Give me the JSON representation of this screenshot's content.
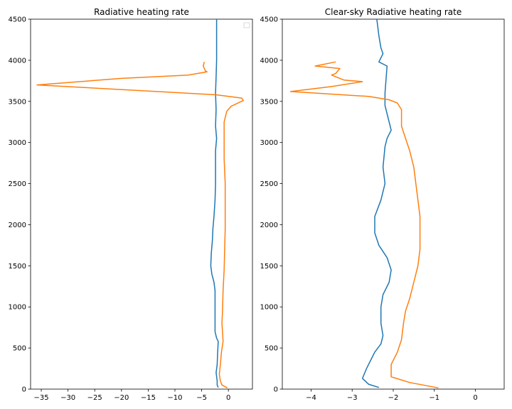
{
  "colors": {
    "series1": "#1f77b4",
    "series2": "#ff7f0e",
    "axes": "#000000",
    "background": "#ffffff"
  },
  "chart_data": [
    {
      "type": "line",
      "title": "Radiative heating rate",
      "xlabel": "",
      "ylabel": "",
      "xlim": [
        -37,
        4.5
      ],
      "ylim": [
        0,
        4500
      ],
      "xticks": [
        -35,
        -30,
        -25,
        -20,
        -15,
        -10,
        -5,
        0
      ],
      "xtick_labels": [
        "−35",
        "−30",
        "−25",
        "−20",
        "−15",
        "−10",
        "−5",
        "0"
      ],
      "yticks": [
        0,
        500,
        1000,
        1500,
        2000,
        2500,
        3000,
        3500,
        4000,
        4500
      ],
      "ytick_labels": [
        "0",
        "500",
        "1000",
        "1500",
        "2000",
        "2500",
        "3000",
        "3500",
        "4000",
        "4500"
      ],
      "grid": false,
      "legend": {
        "placement": "top-right",
        "entries": []
      },
      "series": [
        {
          "color": "#1f77b4",
          "points": [
            [
              -2.2,
              4500
            ],
            [
              -2.2,
              4250
            ],
            [
              -2.2,
              4000
            ],
            [
              -2.3,
              3800
            ],
            [
              -2.4,
              3600
            ],
            [
              -2.3,
              3400
            ],
            [
              -2.4,
              3200
            ],
            [
              -2.2,
              3050
            ],
            [
              -2.4,
              2900
            ],
            [
              -2.4,
              2700
            ],
            [
              -2.4,
              2500
            ],
            [
              -2.5,
              2300
            ],
            [
              -2.7,
              2100
            ],
            [
              -2.9,
              1950
            ],
            [
              -3.0,
              1800
            ],
            [
              -3.2,
              1650
            ],
            [
              -3.3,
              1500
            ],
            [
              -3.1,
              1400
            ],
            [
              -2.7,
              1300
            ],
            [
              -2.5,
              1200
            ],
            [
              -2.5,
              1000
            ],
            [
              -2.5,
              800
            ],
            [
              -2.5,
              700
            ],
            [
              -2.2,
              620
            ],
            [
              -1.9,
              580
            ],
            [
              -2.0,
              450
            ],
            [
              -2.1,
              300
            ],
            [
              -2.3,
              200
            ],
            [
              -2.1,
              100
            ],
            [
              -2.1,
              50
            ],
            [
              -1.9,
              20
            ]
          ]
        },
        {
          "color": "#ff7f0e",
          "points": [
            [
              -4.5,
              3980
            ],
            [
              -4.7,
              3930
            ],
            [
              -4.3,
              3870
            ],
            [
              -4.0,
              3860
            ],
            [
              -7.5,
              3820
            ],
            [
              -20.0,
              3780
            ],
            [
              -35.8,
              3700
            ],
            [
              -2.3,
              3580
            ],
            [
              2.5,
              3540
            ],
            [
              2.8,
              3510
            ],
            [
              0.5,
              3440
            ],
            [
              -0.3,
              3380
            ],
            [
              -0.8,
              3250
            ],
            [
              -0.8,
              3050
            ],
            [
              -0.8,
              2800
            ],
            [
              -0.6,
              2500
            ],
            [
              -0.6,
              2200
            ],
            [
              -0.6,
              1950
            ],
            [
              -0.7,
              1700
            ],
            [
              -0.8,
              1450
            ],
            [
              -1.0,
              1200
            ],
            [
              -1.1,
              950
            ],
            [
              -1.2,
              800
            ],
            [
              -1.1,
              700
            ],
            [
              -1.0,
              580
            ],
            [
              -1.3,
              450
            ],
            [
              -1.5,
              300
            ],
            [
              -1.7,
              180
            ],
            [
              -1.5,
              100
            ],
            [
              -1.2,
              50
            ],
            [
              -0.2,
              15
            ]
          ]
        }
      ]
    },
    {
      "type": "line",
      "title": "Clear-sky Radiative heating rate",
      "xlabel": "",
      "ylabel": "",
      "xlim": [
        -4.7,
        0.7
      ],
      "ylim": [
        0,
        4500
      ],
      "xticks": [
        -4,
        -3,
        -2,
        -1,
        0
      ],
      "xtick_labels": [
        "−4",
        "−3",
        "−2",
        "−1",
        "0"
      ],
      "yticks": [
        0,
        500,
        1000,
        1500,
        2000,
        2500,
        3000,
        3500,
        4000,
        4500
      ],
      "ytick_labels": [
        "0",
        "500",
        "1000",
        "1500",
        "2000",
        "2500",
        "3000",
        "3500",
        "4000",
        "4500"
      ],
      "grid": false,
      "series": [
        {
          "color": "#1f77b4",
          "points": [
            [
              -2.4,
              4500
            ],
            [
              -2.35,
              4300
            ],
            [
              -2.3,
              4150
            ],
            [
              -2.25,
              4080
            ],
            [
              -2.35,
              3980
            ],
            [
              -2.15,
              3930
            ],
            [
              -2.2,
              3600
            ],
            [
              -2.2,
              3450
            ],
            [
              -2.1,
              3250
            ],
            [
              -2.05,
              3150
            ],
            [
              -2.15,
              3050
            ],
            [
              -2.2,
              2950
            ],
            [
              -2.25,
              2700
            ],
            [
              -2.2,
              2500
            ],
            [
              -2.3,
              2300
            ],
            [
              -2.45,
              2100
            ],
            [
              -2.45,
              1900
            ],
            [
              -2.35,
              1750
            ],
            [
              -2.15,
              1600
            ],
            [
              -2.05,
              1450
            ],
            [
              -2.1,
              1300
            ],
            [
              -2.25,
              1150
            ],
            [
              -2.3,
              1000
            ],
            [
              -2.3,
              800
            ],
            [
              -2.25,
              650
            ],
            [
              -2.3,
              550
            ],
            [
              -2.45,
              450
            ],
            [
              -2.55,
              350
            ],
            [
              -2.65,
              250
            ],
            [
              -2.75,
              130
            ],
            [
              -2.6,
              60
            ],
            [
              -2.35,
              20
            ]
          ]
        },
        {
          "color": "#ff7f0e",
          "points": [
            [
              -3.4,
              3980
            ],
            [
              -3.9,
              3930
            ],
            [
              -3.3,
              3900
            ],
            [
              -3.4,
              3840
            ],
            [
              -3.5,
              3820
            ],
            [
              -3.3,
              3780
            ],
            [
              -3.2,
              3760
            ],
            [
              -2.75,
              3740
            ],
            [
              -3.5,
              3680
            ],
            [
              -4.5,
              3620
            ],
            [
              -2.6,
              3560
            ],
            [
              -2.1,
              3520
            ],
            [
              -1.9,
              3480
            ],
            [
              -1.8,
              3400
            ],
            [
              -1.8,
              3200
            ],
            [
              -1.7,
              3050
            ],
            [
              -1.6,
              2900
            ],
            [
              -1.5,
              2700
            ],
            [
              -1.45,
              2500
            ],
            [
              -1.4,
              2300
            ],
            [
              -1.35,
              2100
            ],
            [
              -1.35,
              1900
            ],
            [
              -1.35,
              1700
            ],
            [
              -1.4,
              1500
            ],
            [
              -1.5,
              1300
            ],
            [
              -1.6,
              1100
            ],
            [
              -1.7,
              950
            ],
            [
              -1.75,
              800
            ],
            [
              -1.8,
              600
            ],
            [
              -1.9,
              450
            ],
            [
              -2.05,
              300
            ],
            [
              -2.05,
              150
            ],
            [
              -1.6,
              80
            ],
            [
              -0.9,
              15
            ]
          ]
        }
      ]
    }
  ]
}
